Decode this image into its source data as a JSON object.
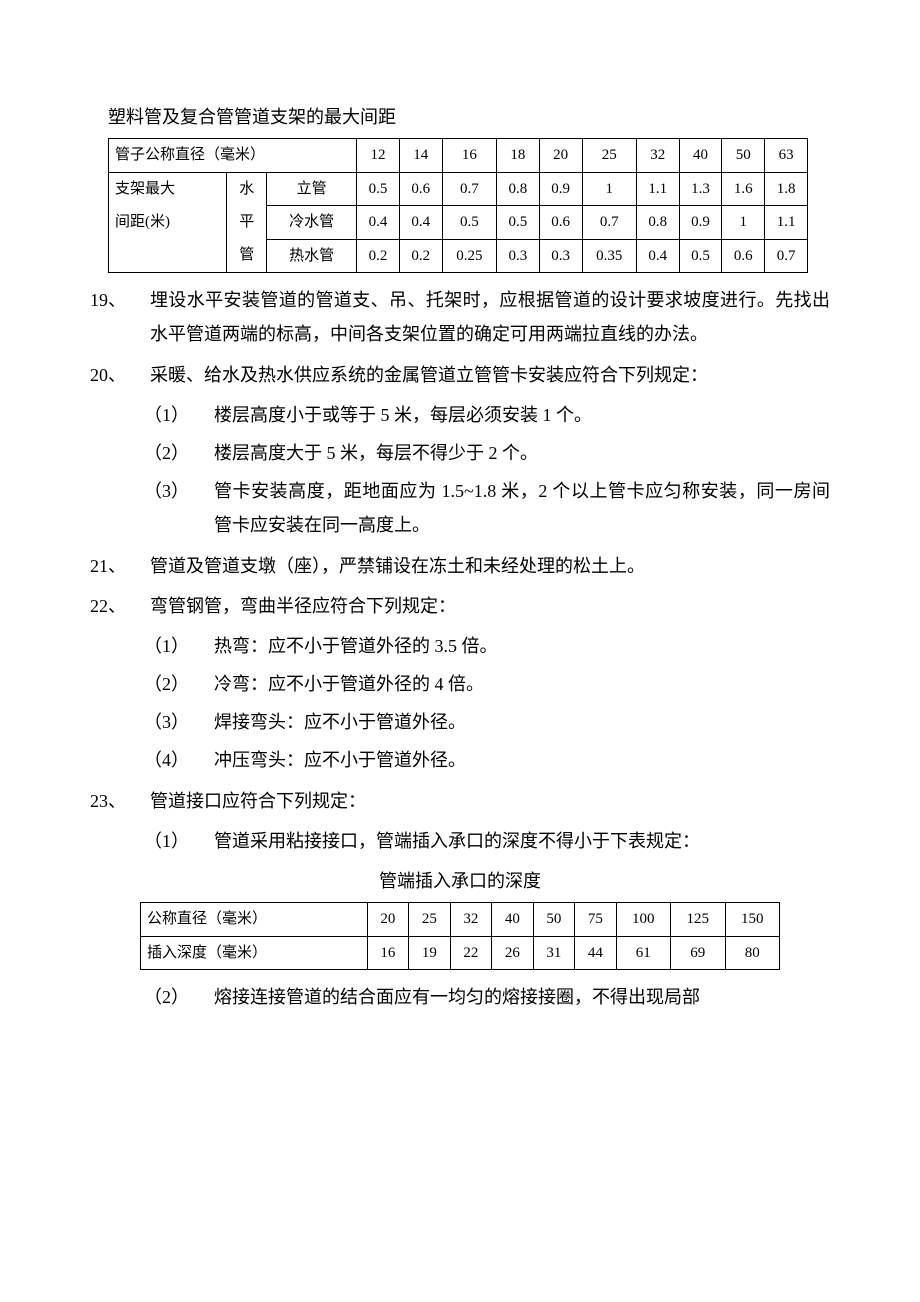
{
  "table1": {
    "title": "塑料管及复合管管道支架的最大间距",
    "header_label": "管子公称直径（毫米）",
    "diameters": [
      "12",
      "14",
      "16",
      "18",
      "20",
      "25",
      "32",
      "40",
      "50",
      "63"
    ],
    "left_label_a": "支架最大",
    "left_label_b": "间距(米)",
    "col2_a": "水",
    "col2_b": "平",
    "col2_c": "管",
    "row1_label": "立管",
    "row1": [
      "0.5",
      "0.6",
      "0.7",
      "0.8",
      "0.9",
      "1",
      "1.1",
      "1.3",
      "1.6",
      "1.8"
    ],
    "row2_label": "冷水管",
    "row2": [
      "0.4",
      "0.4",
      "0.5",
      "0.5",
      "0.6",
      "0.7",
      "0.8",
      "0.9",
      "1",
      "1.1"
    ],
    "row3_label": "热水管",
    "row3": [
      "0.2",
      "0.2",
      "0.25",
      "0.3",
      "0.3",
      "0.35",
      "0.4",
      "0.5",
      "0.6",
      "0.7"
    ]
  },
  "items": {
    "i19": {
      "no": "19、",
      "text": "埋设水平安装管道的管道支、吊、托架时，应根据管道的设计要求坡度进行。先找出水平管道两端的标高，中间各支架位置的确定可用两端拉直线的办法。"
    },
    "i20": {
      "no": "20、",
      "text": "采暖、给水及热水供应系统的金属管道立管管卡安装应符合下列规定：",
      "subs": {
        "s1": {
          "n": "（1）",
          "t": "楼层高度小于或等于 5 米，每层必须安装 1 个。"
        },
        "s2": {
          "n": "（2）",
          "t": "楼层高度大于 5 米，每层不得少于 2 个。"
        },
        "s3": {
          "n": "（3）",
          "t": "管卡安装高度，距地面应为 1.5~1.8 米，2 个以上管卡应匀称安装，同一房间管卡应安装在同一高度上。"
        }
      }
    },
    "i21": {
      "no": "21、",
      "text": "管道及管道支墩（座），严禁铺设在冻土和未经处理的松土上。"
    },
    "i22": {
      "no": "22、",
      "text": "弯管钢管，弯曲半径应符合下列规定：",
      "subs": {
        "s1": {
          "n": "（1）",
          "t": "热弯：应不小于管道外径的 3.5 倍。"
        },
        "s2": {
          "n": "（2）",
          "t": "冷弯：应不小于管道外径的 4 倍。"
        },
        "s3": {
          "n": "（3）",
          "t": "焊接弯头：应不小于管道外径。"
        },
        "s4": {
          "n": "（4）",
          "t": "冲压弯头：应不小于管道外径。"
        }
      }
    },
    "i23": {
      "no": "23、",
      "text": "管道接口应符合下列规定：",
      "subs": {
        "s1": {
          "n": "（1）",
          "t": "管道采用粘接接口，管端插入承口的深度不得小于下表规定："
        },
        "s2": {
          "n": "（2）",
          "t": "熔接连接管道的结合面应有一均匀的熔接接圈，不得出现局部"
        }
      }
    }
  },
  "table2": {
    "title": "管端插入承口的深度",
    "row1_label": "公称直径（毫米）",
    "row1": [
      "20",
      "25",
      "32",
      "40",
      "50",
      "75",
      "100",
      "125",
      "150"
    ],
    "row2_label": "插入深度（毫米）",
    "row2": [
      "16",
      "19",
      "22",
      "26",
      "31",
      "44",
      "61",
      "69",
      "80"
    ]
  }
}
